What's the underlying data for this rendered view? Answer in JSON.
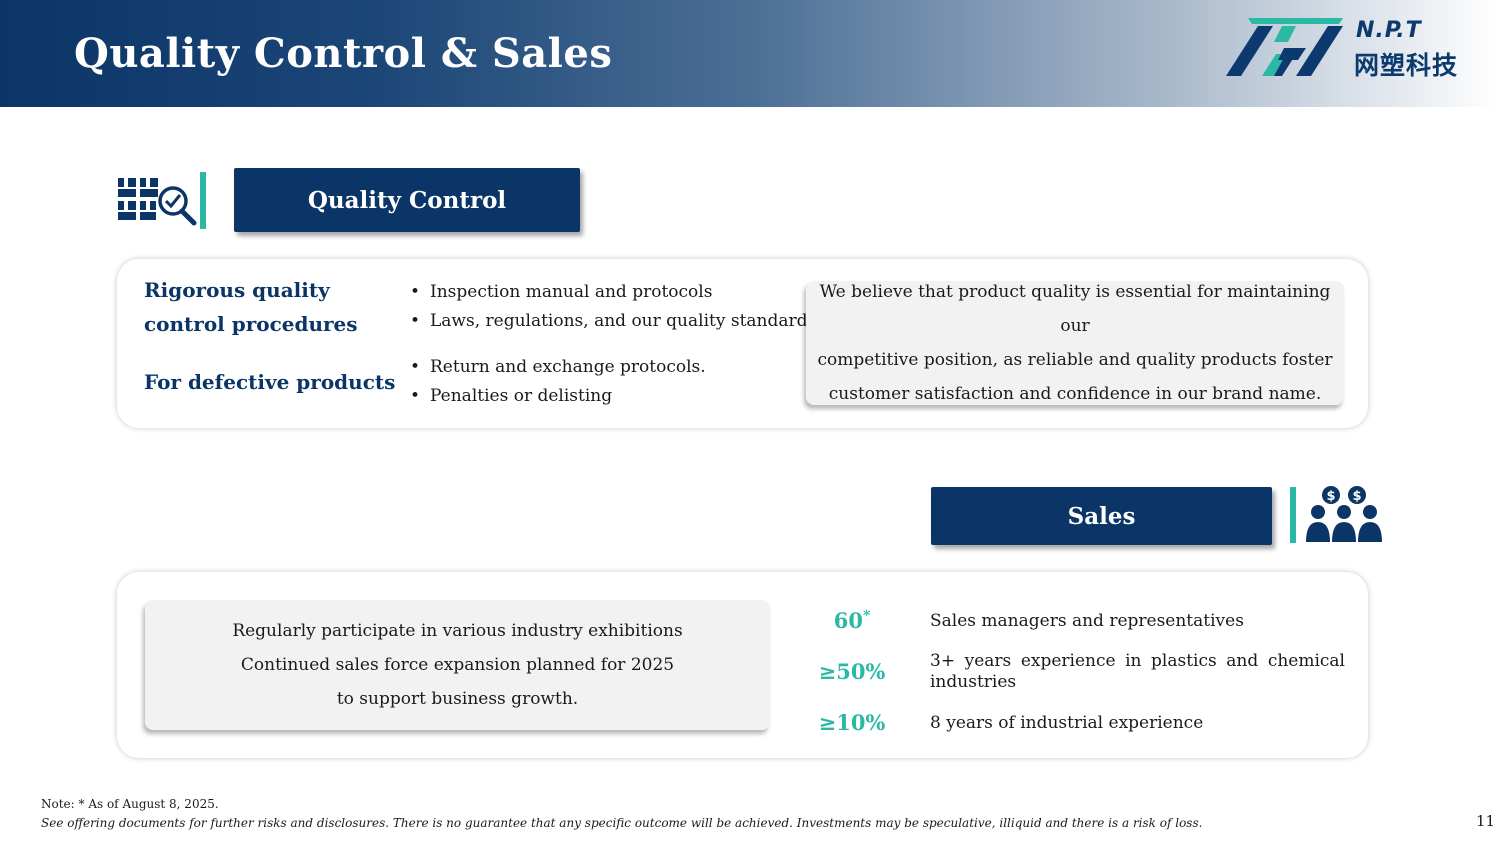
{
  "header": {
    "title": "Quality Control & Sales",
    "logo": {
      "en": "N.P.T",
      "cn": "网塑科技",
      "mark_colors": [
        "#0d3a6e",
        "#2bb9a6"
      ]
    }
  },
  "quality_control": {
    "icon": "inspection-magnifier-icon",
    "banner": "Quality Control",
    "groups": [
      {
        "label_lines": [
          "Rigorous quality",
          "control procedures"
        ],
        "bullets": [
          "Inspection manual and protocols",
          "Laws, regulations, and our quality standards"
        ]
      },
      {
        "label_lines": [
          "For defective products"
        ],
        "bullets": [
          "Return and exchange protocols.",
          "Penalties or delisting"
        ]
      }
    ],
    "statement_lines": [
      "We believe that product quality is essential for maintaining our",
      "competitive position, as reliable and quality products foster",
      "customer satisfaction and confidence in our brand name."
    ]
  },
  "sales": {
    "icon": "sales-team-icon",
    "banner": "Sales",
    "card_lines": [
      "Regularly participate in various industry exhibitions",
      "Continued sales force expansion planned for 2025",
      "to support business growth."
    ],
    "stats": [
      {
        "value": "60",
        "marker": "*",
        "text": "Sales managers and representatives"
      },
      {
        "value": "≥50%",
        "marker": "",
        "text": "3+ years experience in plastics and chemical industries"
      },
      {
        "value": "≥10%",
        "marker": "",
        "text": "8 years of industrial experience"
      }
    ]
  },
  "footer": {
    "note": "Note: * As of August 8, 2025.",
    "disclaimer": "See offering documents for further risks and disclosures. There is no guarantee that any specific outcome will be achieved. Investments may be speculative, illiquid and there is a risk of loss.",
    "page_number": "11"
  },
  "colors": {
    "navy": "#0b3567",
    "teal": "#2bb9a6",
    "card_grey": "#f2f2f2"
  }
}
